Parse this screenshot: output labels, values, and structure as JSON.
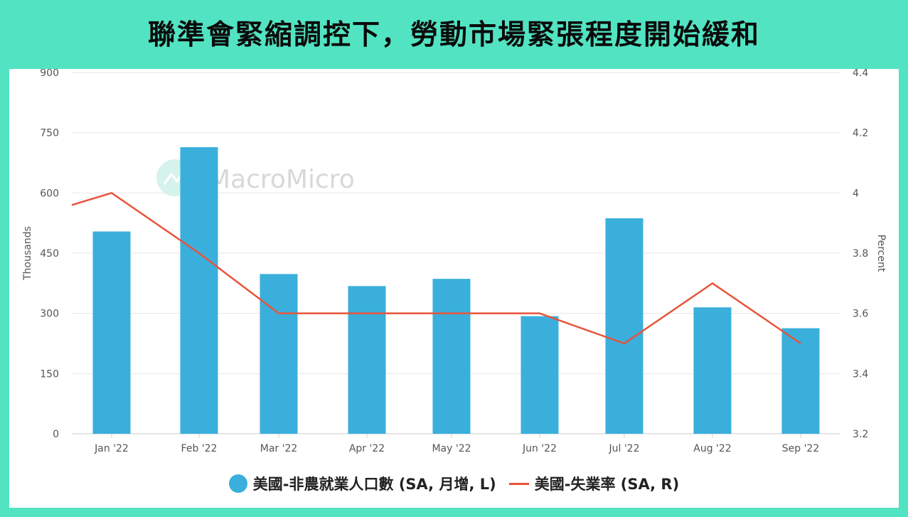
{
  "title": "聯準會緊縮調控下，勞動市場緊張程度開始緩和",
  "watermark": "MacroMicro",
  "colors": {
    "background": "#52e3c2",
    "bar": "#3aafdc",
    "line": "#e8533a",
    "grid": "#e6e6e6"
  },
  "chart_data": {
    "type": "bar",
    "categories": [
      "Jan '22",
      "Feb '22",
      "Mar '22",
      "Apr '22",
      "May '22",
      "Jun '22",
      "Jul '22",
      "Aug '22",
      "Sep '22"
    ],
    "series": [
      {
        "name": "美國-非農就業人口數 (SA, 月增, L)",
        "type": "bar",
        "axis": "left",
        "values": [
          504,
          714,
          398,
          368,
          386,
          293,
          537,
          315,
          263
        ]
      },
      {
        "name": "美國-失業率 (SA, R)",
        "type": "line",
        "axis": "right",
        "values": [
          4.0,
          3.8,
          3.6,
          3.6,
          3.6,
          3.6,
          3.5,
          3.7,
          3.5
        ],
        "leading_value": 3.96
      }
    ],
    "ylabel_left": "Thousands",
    "ylabel_right": "Percent",
    "ylim_left": [
      0,
      900
    ],
    "ylim_right": [
      3.2,
      4.4
    ],
    "yticks_left": [
      "0",
      "150",
      "300",
      "450",
      "600",
      "750",
      "900"
    ],
    "yticks_right": [
      "3.2",
      "3.4",
      "3.6",
      "3.8",
      "4",
      "4.2",
      "4.4"
    ],
    "grid": true,
    "legend_position": "bottom"
  }
}
